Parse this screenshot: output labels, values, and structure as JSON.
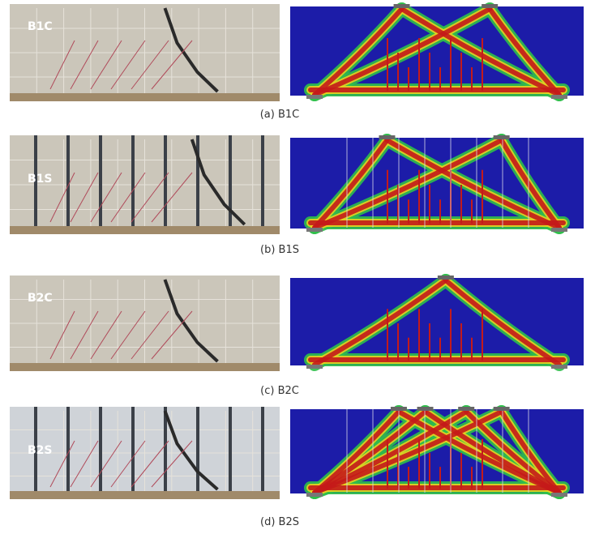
{
  "panels": [
    {
      "label": "B1C",
      "caption": "(a) B1C"
    },
    {
      "label": "B1S",
      "caption": "(b) B1S"
    },
    {
      "label": "B2C",
      "caption": "(c) B2C"
    },
    {
      "label": "B2S",
      "caption": "(d) B2S"
    }
  ]
}
